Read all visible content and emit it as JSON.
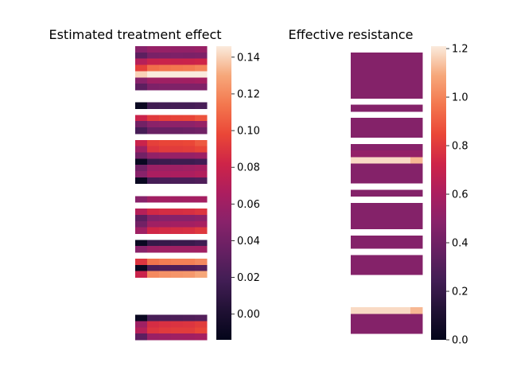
{
  "chart_data": [
    {
      "type": "heatmap",
      "title": "Estimated treatment effect",
      "colormap": "rocket",
      "vmin": -0.014,
      "vmax": 0.146,
      "colorbar_ticks": [
        "0.00",
        "0.02",
        "0.04",
        "0.06",
        "0.08",
        "0.10",
        "0.12",
        "0.14"
      ],
      "colorbar_tick_values": [
        0.0,
        0.02,
        0.04,
        0.06,
        0.08,
        0.1,
        0.12,
        0.14
      ],
      "n_cols": 6,
      "rows": [
        [
          0.05,
          0.056,
          0.056,
          0.055,
          0.055,
          0.057
        ],
        [
          0.03,
          0.043,
          0.044,
          0.045,
          0.044,
          0.045
        ],
        [
          0.07,
          0.079,
          0.08,
          0.079,
          0.08,
          0.082
        ],
        [
          0.095,
          0.111,
          0.113,
          0.114,
          0.115,
          0.118
        ],
        [
          0.14,
          0.146,
          0.146,
          0.146,
          0.146,
          0.146
        ],
        [
          0.05,
          0.06,
          0.06,
          0.06,
          0.061,
          0.063
        ],
        [
          0.03,
          0.045,
          0.046,
          0.046,
          0.046,
          0.046
        ],
        null,
        null,
        [
          -0.01,
          0.017,
          0.018,
          0.019,
          0.019,
          0.021
        ],
        null,
        [
          0.08,
          0.092,
          0.095,
          0.096,
          0.097,
          0.102
        ],
        [
          0.04,
          0.051,
          0.052,
          0.052,
          0.052,
          0.056
        ],
        [
          0.02,
          0.036,
          0.036,
          0.036,
          0.037,
          0.039
        ],
        null,
        [
          0.08,
          0.095,
          0.097,
          0.097,
          0.098,
          0.104
        ],
        [
          0.06,
          0.09,
          0.093,
          0.093,
          0.094,
          0.097
        ],
        [
          0.04,
          0.054,
          0.056,
          0.056,
          0.056,
          0.059
        ],
        [
          -0.01,
          0.014,
          0.015,
          0.016,
          0.016,
          0.018
        ],
        [
          0.04,
          0.058,
          0.059,
          0.059,
          0.06,
          0.063
        ],
        [
          0.05,
          0.065,
          0.065,
          0.066,
          0.066,
          0.069
        ],
        [
          -0.01,
          0.02,
          0.021,
          0.022,
          0.022,
          0.024
        ],
        null,
        null,
        [
          0.05,
          0.061,
          0.062,
          0.061,
          0.062,
          0.063
        ],
        null,
        [
          0.07,
          0.084,
          0.086,
          0.086,
          0.087,
          0.09
        ],
        [
          0.03,
          0.048,
          0.05,
          0.05,
          0.05,
          0.053
        ],
        [
          0.04,
          0.06,
          0.061,
          0.062,
          0.062,
          0.064
        ],
        [
          0.06,
          0.083,
          0.085,
          0.086,
          0.087,
          0.091
        ],
        null,
        [
          -0.01,
          0.012,
          0.013,
          0.014,
          0.014,
          0.017
        ],
        [
          0.05,
          0.059,
          0.06,
          0.06,
          0.06,
          0.061
        ],
        null,
        [
          0.09,
          0.113,
          0.116,
          0.117,
          0.117,
          0.12
        ],
        [
          -0.01,
          0.023,
          0.024,
          0.024,
          0.025,
          0.027
        ],
        [
          0.08,
          0.12,
          0.123,
          0.124,
          0.125,
          0.13
        ],
        null,
        null,
        null,
        null,
        null,
        null,
        [
          -0.01,
          0.021,
          0.022,
          0.023,
          0.024,
          0.026
        ],
        [
          0.06,
          0.086,
          0.088,
          0.089,
          0.09,
          0.093
        ],
        [
          0.07,
          0.09,
          0.092,
          0.093,
          0.093,
          0.097
        ],
        [
          0.03,
          0.058,
          0.059,
          0.06,
          0.061,
          0.063
        ]
      ]
    },
    {
      "type": "heatmap",
      "title": "Effective resistance",
      "colormap": "rocket",
      "vmin": 0.0,
      "vmax": 1.21,
      "colorbar_ticks": [
        "0.0",
        "0.2",
        "0.4",
        "0.6",
        "0.8",
        "1.0",
        "1.2"
      ],
      "colorbar_tick_values": [
        0.0,
        0.2,
        0.4,
        0.6,
        0.8,
        1.0,
        1.2
      ],
      "n_cols": 6,
      "rows": [
        [
          0.47,
          0.47,
          0.47,
          0.47,
          0.47,
          0.47
        ],
        [
          0.47,
          0.47,
          0.47,
          0.47,
          0.47,
          0.47
        ],
        [
          0.47,
          0.47,
          0.47,
          0.47,
          0.47,
          0.47
        ],
        [
          0.47,
          0.47,
          0.47,
          0.47,
          0.47,
          0.47
        ],
        [
          0.47,
          0.47,
          0.47,
          0.47,
          0.47,
          0.47
        ],
        [
          0.47,
          0.47,
          0.47,
          0.47,
          0.47,
          0.47
        ],
        [
          0.47,
          0.47,
          0.47,
          0.47,
          0.47,
          0.47
        ],
        null,
        [
          0.47,
          0.47,
          0.47,
          0.47,
          0.47,
          0.47
        ],
        null,
        [
          0.47,
          0.47,
          0.47,
          0.47,
          0.47,
          0.47
        ],
        [
          0.47,
          0.47,
          0.47,
          0.47,
          0.47,
          0.47
        ],
        [
          0.47,
          0.47,
          0.47,
          0.47,
          0.47,
          0.47
        ],
        null,
        [
          0.48,
          0.48,
          0.48,
          0.48,
          0.48,
          0.48
        ],
        [
          0.52,
          0.52,
          0.52,
          0.52,
          0.52,
          0.52
        ],
        [
          1.18,
          1.18,
          1.18,
          1.18,
          1.18,
          1.12
        ],
        [
          0.47,
          0.47,
          0.47,
          0.47,
          0.47,
          0.47
        ],
        [
          0.47,
          0.47,
          0.47,
          0.47,
          0.47,
          0.47
        ],
        [
          0.47,
          0.47,
          0.47,
          0.47,
          0.47,
          0.47
        ],
        null,
        [
          0.47,
          0.47,
          0.47,
          0.47,
          0.47,
          0.47
        ],
        null,
        [
          0.47,
          0.47,
          0.47,
          0.47,
          0.47,
          0.47
        ],
        [
          0.47,
          0.47,
          0.47,
          0.47,
          0.47,
          0.47
        ],
        [
          0.47,
          0.47,
          0.47,
          0.47,
          0.47,
          0.47
        ],
        [
          0.47,
          0.47,
          0.47,
          0.47,
          0.47,
          0.47
        ],
        null,
        [
          0.47,
          0.47,
          0.47,
          0.47,
          0.47,
          0.47
        ],
        [
          0.47,
          0.47,
          0.47,
          0.47,
          0.47,
          0.47
        ],
        null,
        [
          0.47,
          0.47,
          0.47,
          0.47,
          0.47,
          0.47
        ],
        [
          0.47,
          0.47,
          0.47,
          0.47,
          0.47,
          0.47
        ],
        [
          0.47,
          0.47,
          0.47,
          0.47,
          0.47,
          0.47
        ],
        null,
        null,
        null,
        null,
        null,
        [
          1.18,
          1.18,
          1.18,
          1.18,
          1.18,
          1.12
        ],
        [
          0.47,
          0.47,
          0.47,
          0.47,
          0.47,
          0.47
        ],
        [
          0.47,
          0.47,
          0.47,
          0.47,
          0.47,
          0.47
        ],
        [
          0.47,
          0.47,
          0.47,
          0.47,
          0.47,
          0.47
        ]
      ]
    }
  ]
}
